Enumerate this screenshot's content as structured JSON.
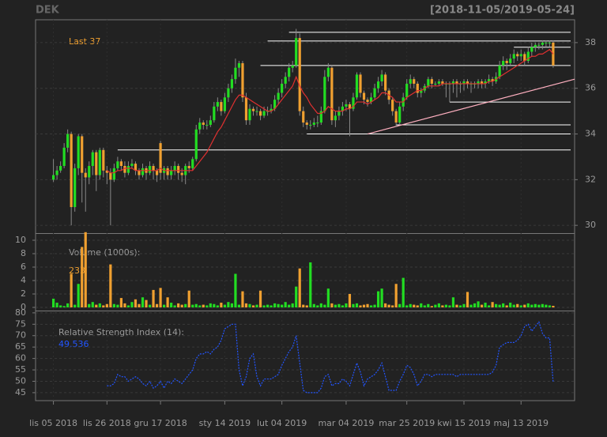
{
  "chart_data": {
    "type": "candlestick",
    "title": "DEK",
    "date_range": "[2018-11-05/2019-05-24]",
    "last_label": "Last",
    "last": 37,
    "up_color": "#22dd22",
    "down_color": "#f0a030",
    "ma_color": "#e03030",
    "level_color": "#ffffff",
    "trend_color": "#ffb0c0",
    "xlim": [
      -5,
      146
    ],
    "xticks": [
      {
        "value": 0,
        "label": "lis 05 2018"
      },
      {
        "value": 15,
        "label": "lis 26 2018"
      },
      {
        "value": 30,
        "label": "gru 17 2018"
      },
      {
        "value": 48,
        "label": "sty 14 2019"
      },
      {
        "value": 64,
        "label": "lut 04 2019"
      },
      {
        "value": 82,
        "label": "mar 04 2019"
      },
      {
        "value": 99,
        "label": "mar 25 2019"
      },
      {
        "value": 115,
        "label": "kwi 15 2019"
      },
      {
        "value": 131,
        "label": "maj 13 2019"
      }
    ],
    "ylim": [
      29.66,
      39.0
    ],
    "yticks": [
      30,
      32,
      34,
      36,
      38
    ],
    "grid": true,
    "ohlc": [
      [
        32.0,
        32.9,
        31.9,
        32.2
      ],
      [
        32.2,
        32.6,
        32.0,
        32.4
      ],
      [
        32.4,
        32.8,
        32.3,
        32.6
      ],
      [
        32.6,
        33.6,
        32.5,
        33.4
      ],
      [
        33.4,
        34.2,
        33.2,
        34.0
      ],
      [
        34.0,
        34.1,
        30.0,
        30.8
      ],
      [
        30.8,
        32.7,
        30.6,
        32.5
      ],
      [
        32.5,
        34.0,
        32.2,
        33.9
      ],
      [
        33.9,
        34.0,
        31.0,
        32.3
      ],
      [
        32.3,
        32.5,
        30.6,
        32.1
      ],
      [
        32.1,
        32.8,
        31.8,
        32.6
      ],
      [
        32.6,
        33.3,
        32.2,
        33.2
      ],
      [
        33.2,
        33.3,
        31.5,
        32.2
      ],
      [
        32.2,
        33.4,
        32.0,
        33.3
      ],
      [
        33.3,
        33.4,
        32.1,
        32.4
      ],
      [
        32.4,
        32.6,
        31.8,
        32.3
      ],
      [
        32.3,
        32.5,
        30.0,
        32.0
      ],
      [
        32.0,
        32.7,
        31.9,
        32.5
      ],
      [
        32.5,
        33.0,
        32.4,
        32.8
      ],
      [
        32.8,
        32.9,
        32.4,
        32.6
      ],
      [
        32.6,
        32.8,
        32.1,
        32.3
      ],
      [
        32.3,
        32.8,
        32.2,
        32.6
      ],
      [
        32.6,
        32.9,
        32.5,
        32.7
      ],
      [
        32.7,
        32.8,
        32.2,
        32.4
      ],
      [
        32.4,
        32.5,
        32.0,
        32.2
      ],
      [
        32.2,
        32.7,
        32.1,
        32.5
      ],
      [
        32.5,
        32.6,
        32.0,
        32.3
      ],
      [
        32.3,
        32.8,
        32.2,
        32.6
      ],
      [
        32.6,
        32.7,
        32.0,
        32.4
      ],
      [
        32.4,
        32.5,
        31.9,
        32.2
      ],
      [
        33.6,
        33.7,
        32.0,
        32.3
      ],
      [
        32.3,
        32.6,
        32.0,
        32.5
      ],
      [
        32.5,
        32.6,
        32.0,
        32.2
      ],
      [
        32.2,
        32.6,
        32.0,
        32.4
      ],
      [
        32.4,
        32.8,
        32.2,
        32.6
      ],
      [
        32.6,
        32.7,
        32.0,
        32.3
      ],
      [
        32.3,
        32.5,
        31.9,
        32.2
      ],
      [
        32.2,
        32.7,
        31.8,
        32.6
      ],
      [
        32.6,
        32.8,
        32.3,
        32.5
      ],
      [
        32.5,
        33.0,
        32.4,
        32.9
      ],
      [
        32.9,
        34.4,
        32.8,
        34.2
      ],
      [
        34.2,
        34.7,
        34.0,
        34.5
      ],
      [
        34.5,
        34.6,
        34.2,
        34.4
      ],
      [
        34.4,
        34.6,
        34.2,
        34.4
      ],
      [
        34.4,
        34.8,
        34.3,
        34.6
      ],
      [
        34.6,
        35.4,
        34.5,
        35.2
      ],
      [
        35.2,
        35.6,
        35.0,
        35.4
      ],
      [
        35.4,
        35.5,
        34.8,
        35.0
      ],
      [
        35.0,
        35.8,
        34.9,
        35.6
      ],
      [
        35.6,
        36.2,
        35.4,
        36.0
      ],
      [
        36.0,
        36.6,
        35.8,
        36.4
      ],
      [
        36.4,
        37.3,
        36.2,
        36.9
      ],
      [
        36.9,
        37.2,
        36.5,
        37.1
      ],
      [
        37.1,
        37.2,
        35.4,
        35.6
      ],
      [
        35.6,
        35.8,
        34.4,
        34.6
      ],
      [
        34.6,
        35.3,
        34.4,
        35.1
      ],
      [
        35.1,
        35.2,
        34.8,
        35.0
      ],
      [
        35.0,
        35.2,
        34.8,
        35.0
      ],
      [
        35.0,
        35.1,
        34.6,
        34.8
      ],
      [
        34.8,
        35.2,
        34.7,
        35.0
      ],
      [
        35.0,
        35.2,
        34.8,
        35.0
      ],
      [
        35.0,
        35.3,
        34.9,
        35.1
      ],
      [
        35.1,
        35.7,
        35.0,
        35.5
      ],
      [
        35.5,
        36.0,
        35.3,
        35.8
      ],
      [
        35.8,
        36.4,
        35.6,
        36.2
      ],
      [
        36.2,
        36.7,
        36.0,
        36.5
      ],
      [
        36.5,
        37.1,
        36.3,
        36.9
      ],
      [
        36.9,
        37.2,
        36.7,
        37.0
      ],
      [
        37.0,
        38.6,
        36.9,
        38.2
      ],
      [
        38.2,
        38.4,
        34.8,
        35.0
      ],
      [
        35.0,
        35.2,
        34.3,
        34.5
      ],
      [
        34.5,
        34.6,
        34.2,
        34.4
      ],
      [
        34.4,
        34.6,
        34.2,
        34.4
      ],
      [
        34.4,
        34.7,
        34.3,
        34.5
      ],
      [
        34.5,
        34.8,
        34.3,
        34.5
      ],
      [
        34.5,
        35.2,
        34.4,
        35.0
      ],
      [
        35.0,
        36.8,
        34.9,
        36.5
      ],
      [
        36.5,
        37.1,
        36.3,
        36.9
      ],
      [
        36.9,
        37.0,
        34.4,
        34.6
      ],
      [
        34.6,
        35.0,
        34.3,
        34.8
      ],
      [
        34.8,
        35.2,
        34.6,
        35.0
      ],
      [
        35.0,
        35.4,
        34.8,
        35.2
      ],
      [
        35.2,
        35.5,
        35.0,
        35.3
      ],
      [
        35.3,
        35.4,
        33.9,
        35.1
      ],
      [
        35.1,
        35.8,
        35.0,
        35.6
      ],
      [
        35.6,
        36.7,
        35.5,
        36.6
      ],
      [
        36.6,
        36.7,
        35.6,
        35.8
      ],
      [
        35.8,
        35.9,
        35.3,
        35.5
      ],
      [
        35.5,
        35.6,
        35.2,
        35.4
      ],
      [
        35.4,
        35.8,
        35.3,
        35.6
      ],
      [
        35.6,
        36.2,
        35.5,
        36.0
      ],
      [
        36.0,
        36.5,
        35.8,
        36.3
      ],
      [
        36.3,
        36.8,
        36.1,
        36.6
      ],
      [
        36.6,
        36.7,
        35.7,
        35.9
      ],
      [
        35.9,
        36.0,
        35.3,
        35.5
      ],
      [
        35.5,
        35.6,
        34.8,
        35.0
      ],
      [
        35.0,
        35.1,
        34.3,
        34.5
      ],
      [
        34.5,
        35.4,
        34.4,
        35.2
      ],
      [
        35.2,
        35.8,
        35.0,
        35.6
      ],
      [
        35.6,
        36.4,
        35.5,
        36.2
      ],
      [
        36.2,
        36.6,
        36.0,
        36.4
      ],
      [
        36.4,
        36.5,
        36.0,
        36.2
      ],
      [
        36.2,
        36.3,
        35.6,
        35.8
      ],
      [
        35.8,
        36.0,
        35.6,
        35.9
      ],
      [
        35.9,
        36.2,
        35.8,
        36.1
      ],
      [
        36.1,
        36.5,
        36.0,
        36.4
      ],
      [
        36.4,
        36.5,
        36.0,
        36.2
      ],
      [
        36.2,
        36.3,
        36.1,
        36.2
      ],
      [
        36.2,
        36.4,
        36.1,
        36.3
      ],
      [
        36.3,
        36.4,
        36.1,
        36.2
      ],
      [
        36.2,
        36.3,
        35.6,
        36.2
      ],
      [
        36.2,
        36.3,
        35.4,
        36.2
      ],
      [
        36.2,
        36.4,
        35.8,
        36.3
      ],
      [
        36.3,
        36.4,
        35.6,
        36.2
      ],
      [
        36.2,
        36.3,
        35.8,
        36.2
      ],
      [
        36.2,
        36.4,
        35.9,
        36.3
      ],
      [
        36.3,
        36.4,
        36.0,
        36.2
      ],
      [
        36.2,
        36.3,
        35.8,
        36.2
      ],
      [
        36.2,
        36.3,
        36.0,
        36.2
      ],
      [
        36.2,
        36.4,
        36.0,
        36.3
      ],
      [
        36.3,
        36.4,
        36.0,
        36.2
      ],
      [
        36.2,
        36.4,
        36.0,
        36.3
      ],
      [
        36.3,
        36.6,
        36.2,
        36.4
      ],
      [
        36.4,
        36.5,
        36.1,
        36.3
      ],
      [
        36.3,
        36.7,
        36.2,
        36.5
      ],
      [
        36.5,
        37.2,
        36.4,
        37.0
      ],
      [
        37.0,
        37.4,
        36.8,
        37.2
      ],
      [
        37.2,
        37.3,
        36.8,
        37.1
      ],
      [
        37.1,
        37.5,
        37.0,
        37.3
      ],
      [
        37.3,
        37.7,
        37.1,
        37.5
      ],
      [
        37.5,
        37.6,
        37.2,
        37.4
      ],
      [
        37.4,
        37.7,
        37.2,
        37.5
      ],
      [
        37.5,
        37.6,
        37.0,
        37.2
      ],
      [
        37.2,
        37.8,
        37.1,
        37.6
      ],
      [
        37.6,
        38.0,
        37.4,
        37.8
      ],
      [
        37.8,
        38.0,
        37.6,
        37.9
      ],
      [
        37.9,
        38.0,
        37.7,
        37.9
      ],
      [
        37.9,
        38.1,
        37.7,
        38.0
      ],
      [
        38.0,
        38.1,
        37.8,
        38.0
      ],
      [
        38.0,
        38.1,
        37.8,
        38.0
      ],
      [
        38.0,
        38.1,
        36.9,
        37.0
      ]
    ],
    "ma": [
      null,
      null,
      null,
      null,
      null,
      null,
      null,
      null,
      null,
      null,
      null,
      null,
      null,
      null,
      null,
      32.4,
      32.3,
      32.3,
      32.4,
      32.4,
      32.5,
      32.5,
      32.5,
      32.4,
      32.4,
      32.4,
      32.4,
      32.4,
      32.4,
      32.4,
      32.5,
      32.4,
      32.4,
      32.4,
      32.4,
      32.4,
      32.4,
      32.4,
      32.4,
      32.4,
      32.6,
      32.8,
      33.0,
      33.2,
      33.5,
      33.8,
      34.1,
      34.3,
      34.6,
      34.9,
      35.2,
      35.5,
      35.7,
      35.7,
      35.6,
      35.5,
      35.4,
      35.3,
      35.2,
      35.1,
      35.0,
      35.0,
      35.1,
      35.3,
      35.5,
      35.7,
      35.9,
      36.1,
      36.5,
      36.1,
      35.8,
      35.6,
      35.3,
      35.1,
      34.9,
      34.9,
      35.0,
      35.2,
      35.1,
      35.0,
      35.0,
      35.0,
      35.1,
      35.1,
      35.2,
      35.4,
      35.4,
      35.4,
      35.3,
      35.4,
      35.5,
      35.6,
      35.8,
      35.8,
      35.7,
      35.6,
      35.4,
      35.4,
      35.4,
      35.6,
      35.7,
      35.8,
      35.9,
      35.9,
      36.0,
      36.1,
      36.1,
      36.1,
      36.1,
      36.2,
      36.2,
      36.2,
      36.2,
      36.2,
      36.2,
      36.2,
      36.2,
      36.2,
      36.2,
      36.2,
      36.2,
      36.2,
      36.3,
      36.3,
      36.4,
      36.5,
      36.6,
      36.7,
      36.8,
      36.9,
      37.0,
      37.1,
      37.2,
      37.3,
      37.4,
      37.4,
      37.5,
      37.5,
      37.6,
      37.7,
      37.5
    ],
    "levels": [
      {
        "price": 38.45,
        "from": 66
      },
      {
        "price": 38.07,
        "from": 60
      },
      {
        "price": 37.8,
        "from": 129
      },
      {
        "price": 37.0,
        "from": 58
      },
      {
        "price": 35.4,
        "from": 111
      },
      {
        "price": 34.4,
        "from": 96
      },
      {
        "price": 34.0,
        "from": 71
      },
      {
        "price": 33.3,
        "from": 18
      }
    ],
    "trendline": {
      "from": [
        88,
        34.0
      ],
      "to": [
        146,
        36.4
      ]
    },
    "volume_label": "Volume (1000s):",
    "volume_last": 233,
    "vol_ylim": [
      -0.47,
      10.94
    ],
    "vol_yticks": [
      0,
      2,
      4,
      6,
      8,
      10
    ],
    "volume": [
      1.3,
      0.7,
      0.3,
      0.2,
      0.6,
      5.0,
      0.4,
      3.5,
      9.0,
      11.2,
      0.5,
      0.8,
      0.4,
      0.6,
      0.3,
      0.5,
      6.4,
      0.5,
      0.4,
      1.4,
      0.6,
      0.3,
      0.8,
      1.2,
      0.5,
      1.5,
      1.1,
      0.4,
      2.6,
      0.5,
      2.9,
      0.4,
      1.5,
      0.7,
      0.3,
      0.6,
      0.4,
      0.5,
      2.5,
      0.4,
      0.5,
      0.3,
      0.4,
      0.3,
      0.6,
      0.5,
      0.3,
      0.7,
      0.4,
      0.8,
      0.6,
      5.0,
      0.4,
      2.4,
      0.6,
      0.5,
      0.3,
      0.4,
      2.5,
      0.3,
      0.4,
      0.3,
      0.6,
      0.5,
      0.4,
      0.8,
      0.4,
      0.6,
      3.1,
      5.8,
      0.4,
      0.3,
      6.7,
      0.5,
      0.3,
      0.6,
      0.4,
      2.8,
      0.6,
      0.4,
      0.5,
      0.3,
      0.6,
      2.0,
      0.5,
      0.6,
      0.3,
      0.4,
      0.5,
      0.3,
      0.4,
      2.4,
      2.8,
      0.6,
      0.4,
      0.3,
      3.5,
      0.5,
      4.4,
      0.3,
      0.5,
      0.4,
      0.3,
      0.6,
      0.3,
      0.5,
      0.2,
      0.4,
      0.6,
      0.3,
      0.4,
      0.3,
      1.5,
      0.4,
      0.3,
      0.5,
      2.3,
      0.4,
      0.6,
      0.9,
      0.4,
      0.7,
      0.3,
      0.8,
      0.5,
      0.4,
      0.6,
      0.3,
      0.7,
      0.4,
      0.5,
      0.3,
      0.4,
      0.6,
      0.4,
      0.5,
      0.4,
      0.5,
      0.4,
      0.3,
      0.233
    ],
    "rsi_label": "Relative Strength Index (14):",
    "rsi_last": 49.536,
    "rsi_color": "#2255ff",
    "rsi_ylim": [
      41.5,
      81.0
    ],
    "rsi_yticks": [
      45,
      50,
      55,
      60,
      65,
      70,
      75,
      80
    ],
    "rsi": [
      null,
      null,
      null,
      null,
      null,
      null,
      null,
      null,
      null,
      null,
      null,
      null,
      null,
      null,
      null,
      48,
      48,
      49,
      53,
      52,
      52,
      50,
      51,
      52,
      51,
      49,
      48,
      50,
      47,
      48,
      50,
      47,
      50,
      49,
      51,
      50,
      49,
      51,
      53,
      55,
      60,
      62,
      62,
      63,
      62,
      64,
      65,
      68,
      73,
      74,
      75,
      75,
      55,
      48,
      52,
      60,
      62,
      52,
      48,
      51,
      51,
      51,
      52,
      53,
      57,
      60,
      63,
      65,
      70,
      58,
      46,
      45,
      45,
      45,
      45,
      47,
      52,
      53,
      48,
      49,
      49,
      51,
      50,
      48,
      53,
      58,
      54,
      48,
      51,
      52,
      53,
      55,
      58,
      52,
      46,
      46,
      46,
      50,
      53,
      57,
      56,
      53,
      48,
      50,
      53,
      53,
      52,
      53,
      53,
      53,
      53,
      53,
      53,
      52,
      53,
      53,
      53,
      53,
      53,
      53,
      53,
      53,
      53,
      54,
      57,
      65,
      66,
      67,
      67,
      67,
      68,
      70,
      74,
      75,
      72,
      74,
      76,
      71,
      69,
      69,
      49.536
    ]
  }
}
